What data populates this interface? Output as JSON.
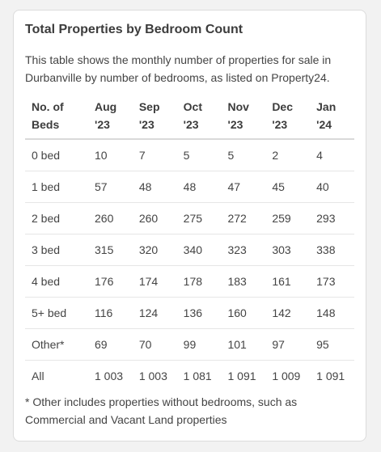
{
  "card": {
    "title": "Total Properties by Bedroom Count",
    "description": "This table shows the monthly number of properties for sale in Durbanville by number of bedrooms, as listed on Property24.",
    "footnote": "* Other includes properties without bedrooms, such as Commercial and Vacant Land properties"
  },
  "table": {
    "headers": [
      [
        "No. of",
        "Beds"
      ],
      [
        "Aug",
        "'23"
      ],
      [
        "Sep",
        "'23"
      ],
      [
        "Oct",
        "'23"
      ],
      [
        "Nov",
        "'23"
      ],
      [
        "Dec",
        "'23"
      ],
      [
        "Jan",
        "'24"
      ]
    ],
    "rows": [
      [
        "0 bed",
        "10",
        "7",
        "5",
        "5",
        "2",
        "4"
      ],
      [
        "1 bed",
        "57",
        "48",
        "48",
        "47",
        "45",
        "40"
      ],
      [
        "2 bed",
        "260",
        "260",
        "275",
        "272",
        "259",
        "293"
      ],
      [
        "3 bed",
        "315",
        "320",
        "340",
        "323",
        "303",
        "338"
      ],
      [
        "4 bed",
        "176",
        "174",
        "178",
        "183",
        "161",
        "173"
      ],
      [
        "5+ bed",
        "116",
        "124",
        "136",
        "160",
        "142",
        "148"
      ],
      [
        "Other*",
        "69",
        "70",
        "99",
        "101",
        "97",
        "95"
      ],
      [
        "All",
        "1 003",
        "1 003",
        "1 081",
        "1 091",
        "1 009",
        "1 091"
      ]
    ]
  }
}
